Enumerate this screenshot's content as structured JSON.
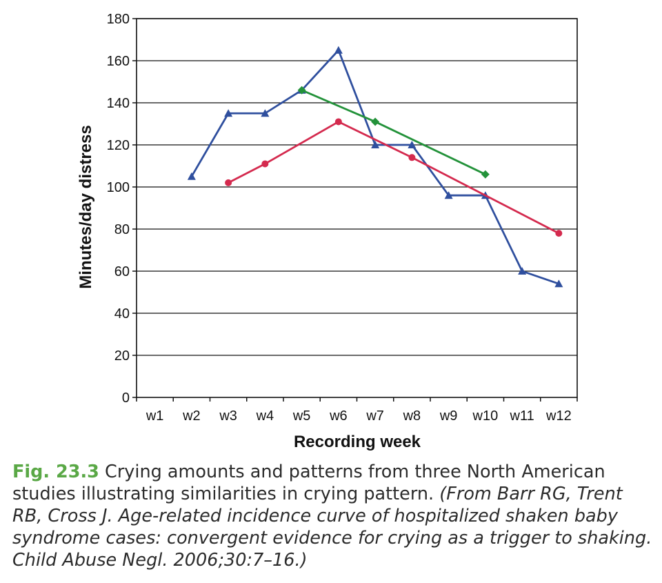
{
  "chart_data": {
    "type": "line",
    "xlabel": "Recording week",
    "ylabel": "Minutes/day distress",
    "categories": [
      "w1",
      "w2",
      "w3",
      "w4",
      "w5",
      "w6",
      "w7",
      "w8",
      "w9",
      "w10",
      "w11",
      "w12"
    ],
    "ylim": [
      0,
      180
    ],
    "yticks": [
      0,
      20,
      40,
      60,
      80,
      100,
      120,
      140,
      160,
      180
    ],
    "grid": "horizontal",
    "series": [
      {
        "color": "#2f4f9e",
        "marker": "triangle",
        "points": [
          {
            "x": 2,
            "y": 105
          },
          {
            "x": 3,
            "y": 135
          },
          {
            "x": 4,
            "y": 135
          },
          {
            "x": 5,
            "y": 146
          },
          {
            "x": 6,
            "y": 165
          },
          {
            "x": 7,
            "y": 120
          },
          {
            "x": 8,
            "y": 120
          },
          {
            "x": 9,
            "y": 96
          },
          {
            "x": 10,
            "y": 96
          },
          {
            "x": 11,
            "y": 60
          },
          {
            "x": 12,
            "y": 54
          }
        ]
      },
      {
        "color": "#d42a4e",
        "marker": "circle",
        "points": [
          {
            "x": 3,
            "y": 102
          },
          {
            "x": 4,
            "y": 111
          },
          {
            "x": 6,
            "y": 131
          },
          {
            "x": 8,
            "y": 114
          },
          {
            "x": 12,
            "y": 78
          }
        ]
      },
      {
        "color": "#23923a",
        "marker": "diamond",
        "points": [
          {
            "x": 5,
            "y": 146
          },
          {
            "x": 7,
            "y": 131
          },
          {
            "x": 10,
            "y": 106
          }
        ]
      }
    ]
  },
  "caption": {
    "fig_label": "Fig. 23.3",
    "text": "Crying amounts and patterns from three North American studies illustrating similarities in crying pattern.",
    "source": "(From Barr RG, Trent RB, Cross J. Age-related incidence curve of hospitalized shaken baby syndrome cases: convergent evidence for crying as a trigger to shaking. Child Abuse Negl. 2006;30:7–16.)"
  }
}
